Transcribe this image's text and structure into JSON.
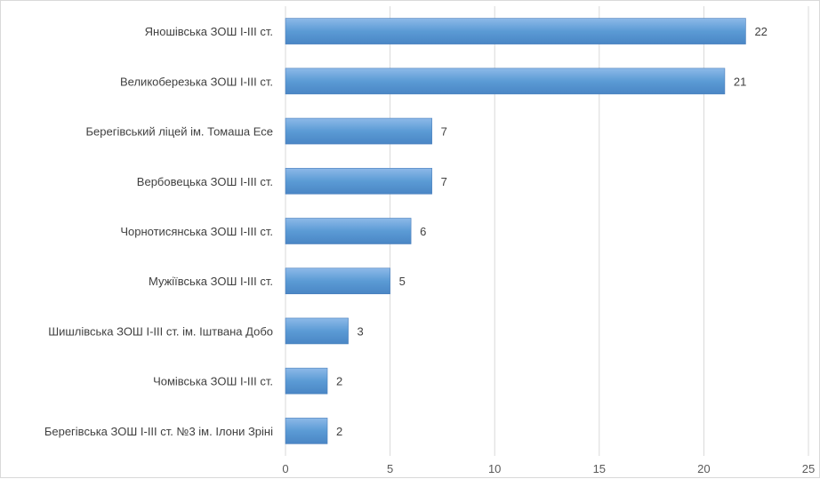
{
  "chart_data": {
    "type": "bar",
    "orientation": "horizontal",
    "title": "",
    "categories": [
      "Яношівська ЗОШ І-ІІІ ст.",
      "Великоберезька ЗОШ І-ІІІ ст.",
      "Берегівський ліцей ім. Томаша Есе",
      "Вербовецька ЗОШ І-ІІІ ст.",
      "Чорнотисянська ЗОШ І-ІІІ ст.",
      "Мужіївська ЗОШ І-ІІІ ст.",
      "Шишлівська ЗОШ І-ІІІ ст. ім. Іштвана Добо",
      "Чомівська ЗОШ І-ІІІ ст.",
      "Берегівська ЗОШ І-ІІІ ст. №3 ім. Ілони Зріні"
    ],
    "values": [
      22,
      21,
      7,
      7,
      6,
      5,
      3,
      2,
      2
    ],
    "xlim": [
      0,
      25
    ],
    "xticks": [
      "0",
      "5",
      "10",
      "15",
      "20",
      "25"
    ],
    "xlabel": "",
    "ylabel": "",
    "grid": "vertical",
    "data_labels": true,
    "bar_color": "#5b9bd5",
    "bar_gradient_light": "#8db9e8",
    "bar_gradient_dark": "#4a86c5"
  }
}
